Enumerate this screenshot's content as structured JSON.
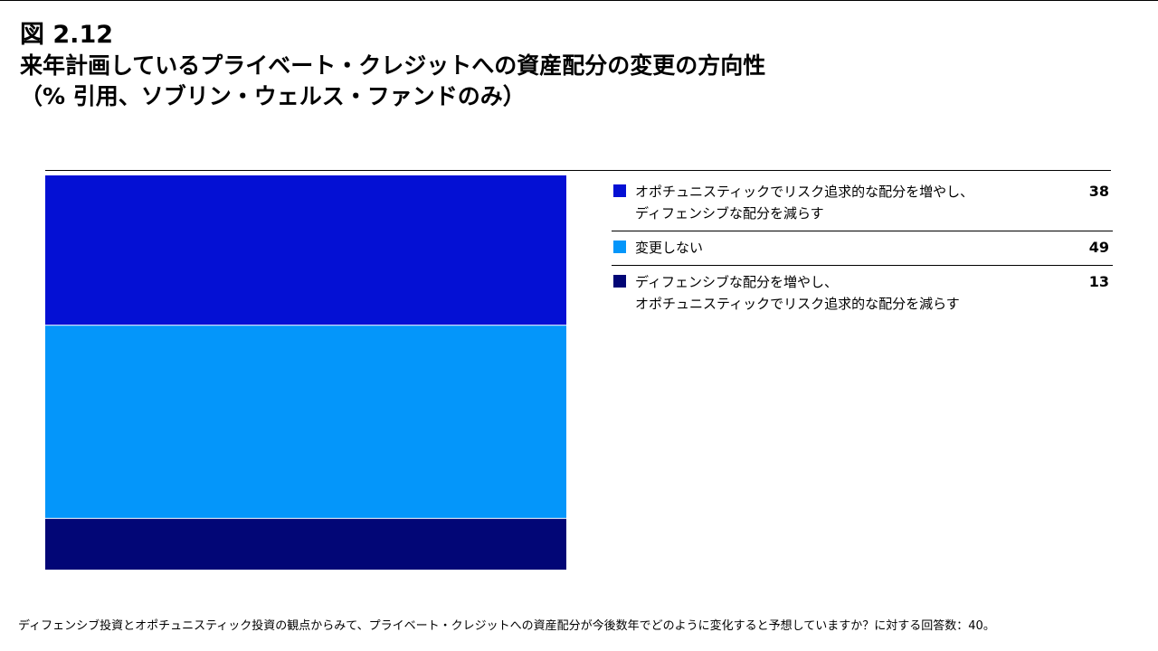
{
  "header": {
    "figure_label": "図 2.12",
    "title_line1": "来年計画しているプライベート・クレジットへの資産配分の変更の方向性",
    "title_line2": "（% 引用、ソブリン・ウェルス・ファンドのみ）"
  },
  "chart_data": {
    "type": "bar",
    "stacked": true,
    "orientation": "vertical",
    "categories": [
      ""
    ],
    "series": [
      {
        "name": "オポチュニスティックでリスク追求的な配分を増やし、ディフェンシブな配分を減らす",
        "name_lines": [
          "オポチュニスティックでリスク追求的な配分を増やし、",
          "ディフェンシブな配分を減らす"
        ],
        "values": [
          38
        ],
        "value_label": "38",
        "color": "#0410D4"
      },
      {
        "name": "変更しない",
        "name_lines": [
          "変更しない"
        ],
        "values": [
          49
        ],
        "value_label": "49",
        "color": "#0496FA"
      },
      {
        "name": "ディフェンシブな配分を増やし、オポチュニスティックでリスク追求的な配分を減らす",
        "name_lines": [
          "ディフェンシブな配分を増やし、",
          "オポチュニスティックでリスク追求的な配分を減らす"
        ],
        "values": [
          13
        ],
        "value_label": "13",
        "color": "#020676"
      }
    ],
    "ylim": [
      0,
      100
    ],
    "grid": false,
    "legend_position": "right"
  },
  "footnote": "ディフェンシブ投資とオポチュニスティック投資の観点からみて、プライベート・クレジットへの資産配分が今後数年でどのように変化すると予想していますか？に対する回答数：40。"
}
